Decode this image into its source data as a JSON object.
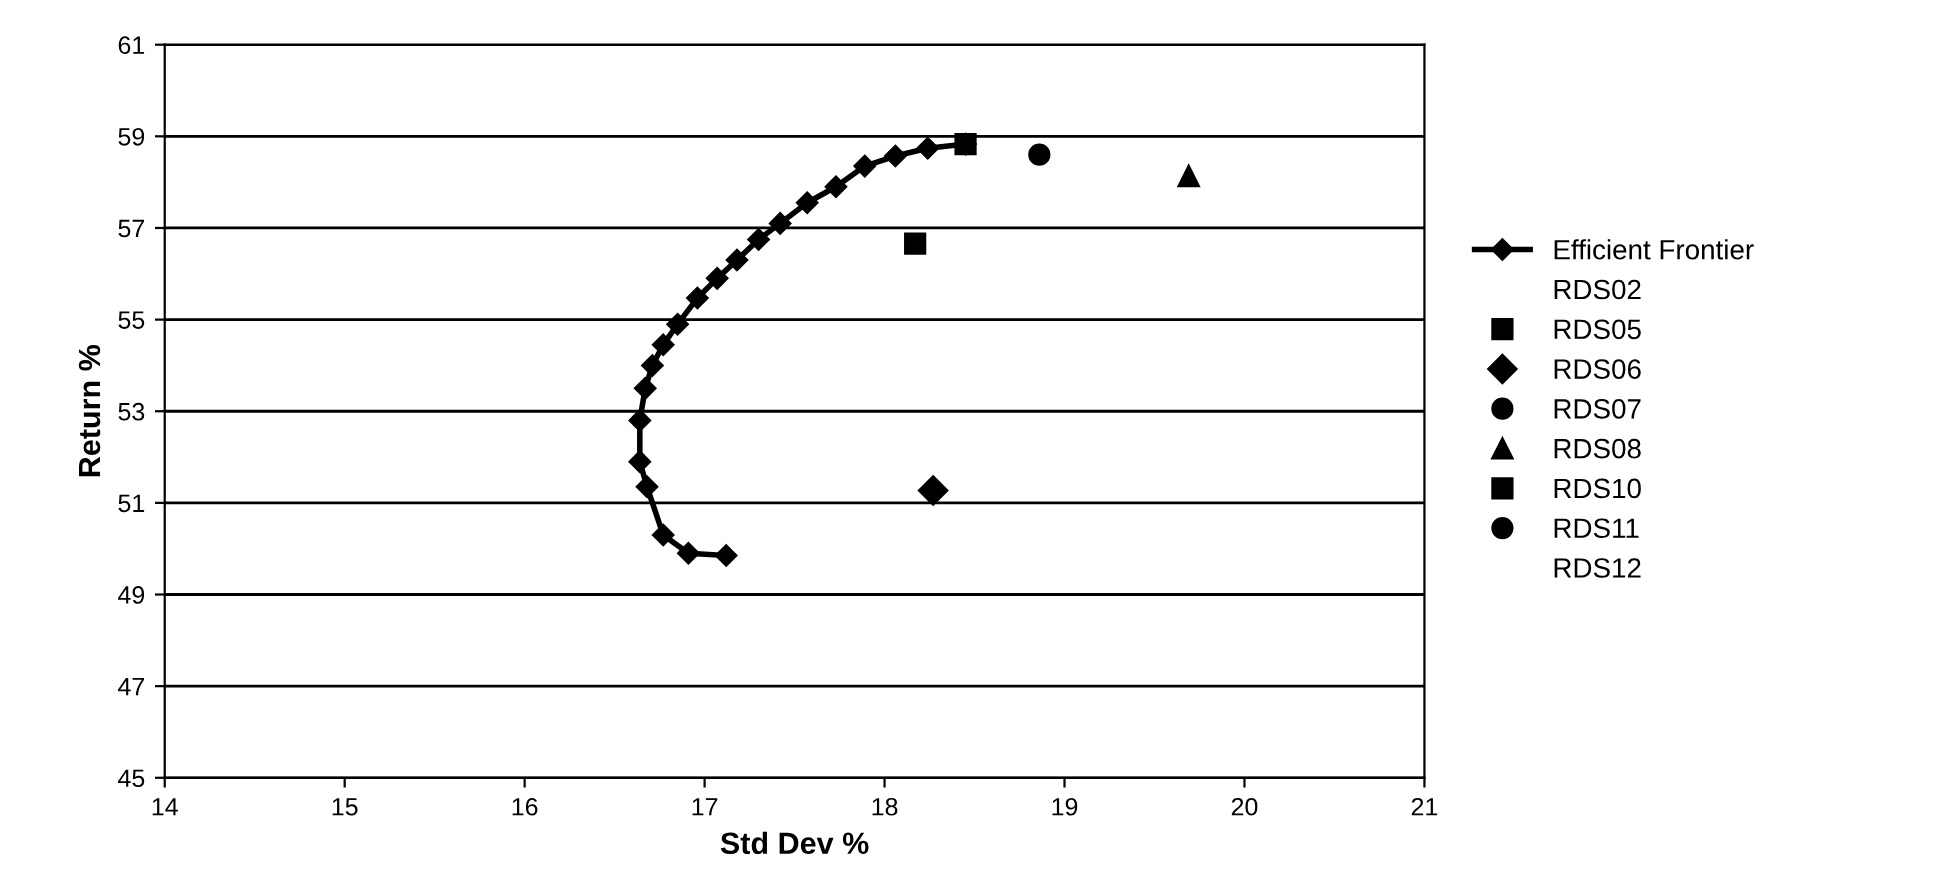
{
  "chart_data": {
    "type": "scatter",
    "xlabel": "Std Dev %",
    "ylabel": "Return %",
    "xlim": [
      14,
      21
    ],
    "ylim": [
      45,
      61
    ],
    "xticks": [
      14,
      15,
      16,
      17,
      18,
      19,
      20,
      21
    ],
    "yticks": [
      45,
      47,
      49,
      51,
      53,
      55,
      57,
      59,
      61
    ],
    "grid": "y",
    "legend": "right",
    "series": [
      {
        "name": "Efficient Frontier",
        "type": "line",
        "marker": "diamond",
        "color": "#000000",
        "x": [
          17.12,
          16.91,
          16.77,
          16.68,
          16.64,
          16.64,
          16.67,
          16.71,
          16.77,
          16.85,
          16.96,
          17.07,
          17.18,
          17.3,
          17.42,
          17.57,
          17.73,
          17.89,
          18.06,
          18.24,
          18.45
        ],
        "values": [
          49.85,
          49.9,
          50.3,
          51.35,
          51.9,
          52.8,
          53.5,
          54.0,
          54.45,
          54.9,
          55.47,
          55.9,
          56.3,
          56.75,
          57.1,
          57.55,
          57.9,
          58.35,
          58.57,
          58.74,
          58.83
        ]
      },
      {
        "name": "RDS02",
        "marker": "none",
        "color": "#000000",
        "x": [
          null
        ],
        "values": [
          null
        ]
      },
      {
        "name": "RDS05",
        "marker": "square",
        "color": "#000000",
        "x": [
          18.45
        ],
        "values": [
          58.83
        ]
      },
      {
        "name": "RDS06",
        "marker": "diamond",
        "color": "#000000",
        "x": [
          18.27
        ],
        "values": [
          51.27
        ]
      },
      {
        "name": "RDS07",
        "marker": "circle",
        "color": "#000000",
        "x": [
          null
        ],
        "values": [
          null
        ]
      },
      {
        "name": "RDS08",
        "marker": "triangle",
        "color": "#000000",
        "x": [
          19.69
        ],
        "values": [
          58.13
        ]
      },
      {
        "name": "RDS10",
        "marker": "square",
        "color": "#000000",
        "x": [
          18.17
        ],
        "values": [
          56.66
        ]
      },
      {
        "name": "RDS11",
        "marker": "circle",
        "color": "#000000",
        "x": [
          18.86
        ],
        "values": [
          58.6
        ]
      },
      {
        "name": "RDS12",
        "marker": "none",
        "color": "#000000",
        "x": [
          null
        ],
        "values": [
          null
        ]
      }
    ]
  }
}
